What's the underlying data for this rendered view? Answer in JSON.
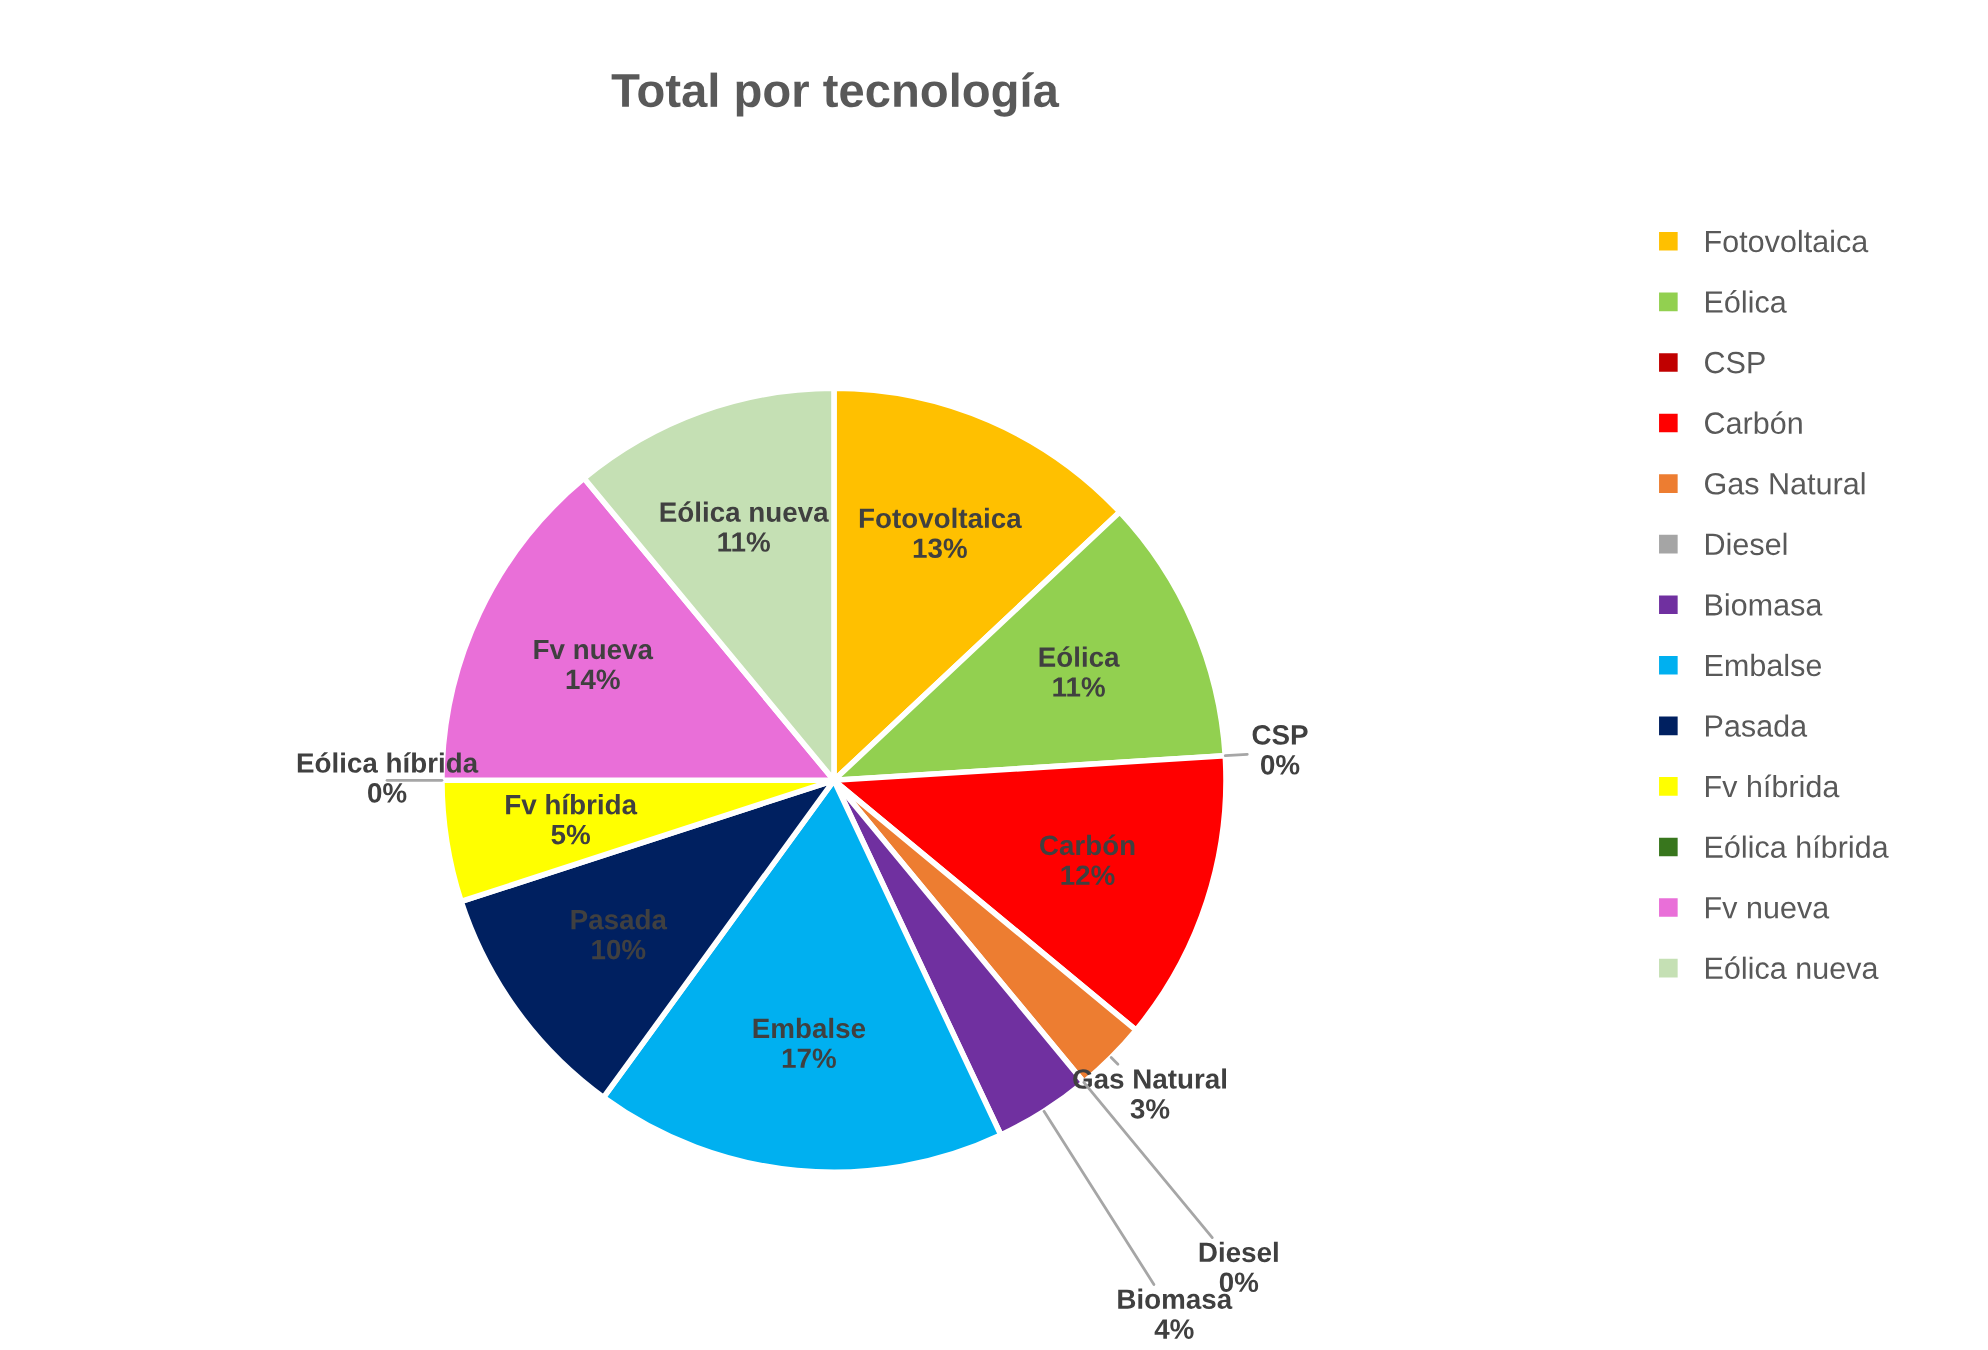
{
  "chart_data": {
    "type": "pie",
    "title": "Total por tecnología",
    "categories": [
      "Fotovoltaica",
      "Eólica",
      "CSP",
      "Carbón",
      "Gas Natural",
      "Diesel",
      "Biomasa",
      "Embalse",
      "Pasada",
      "Fv híbrida",
      "Eólica híbrida",
      "Fv nueva",
      "Eólica nueva"
    ],
    "values": [
      13,
      11,
      0,
      12,
      3,
      0,
      4,
      17,
      10,
      5,
      0,
      14,
      11
    ],
    "value_labels": [
      "13%",
      "11%",
      "0%",
      "12%",
      "3%",
      "0%",
      "4%",
      "17%",
      "10%",
      "5%",
      "0%",
      "14%",
      "11%"
    ],
    "colors": [
      "#ffc000",
      "#92d050",
      "#c00000",
      "#ff0000",
      "#ed7d31",
      "#a5a5a5",
      "#7030a0",
      "#00b0f0",
      "#002060",
      "#ffff00",
      "#38761d",
      "#e96fd8",
      "#c5e0b4"
    ],
    "legend": "right"
  }
}
